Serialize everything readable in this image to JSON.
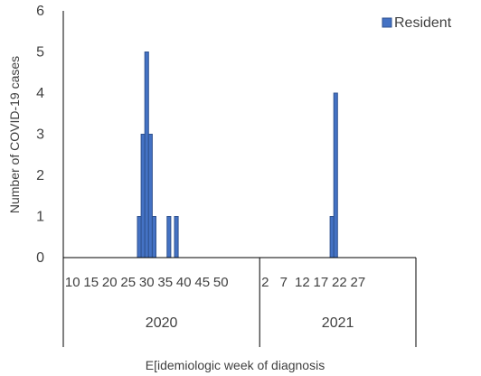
{
  "chart_data": {
    "type": "bar",
    "xlabel": "E[idemiologic week of diagnosis",
    "ylabel": "Number of COVID-19 cases",
    "ylim": [
      0,
      6
    ],
    "yticks": [
      0,
      1,
      2,
      3,
      4,
      5,
      6
    ],
    "legend": {
      "position": "top-right",
      "entries": [
        {
          "name": "Resident",
          "color": "#4472C4"
        }
      ]
    },
    "groups": [
      {
        "label": "2020",
        "week_start": 8,
        "week_end": 51,
        "tick_labels": [
          "10",
          "15",
          "20",
          "25",
          "30",
          "35",
          "40",
          "45",
          "50"
        ],
        "tick_weeks": [
          10,
          15,
          20,
          25,
          30,
          35,
          40,
          45,
          50
        ]
      },
      {
        "label": "2021",
        "week_start": 1,
        "week_end": 29,
        "tick_labels": [
          "2",
          "7",
          "12",
          "17",
          "22",
          "27"
        ],
        "tick_weeks": [
          2,
          7,
          12,
          17,
          22,
          27
        ]
      }
    ],
    "series": [
      {
        "name": "Resident",
        "color": "#4472C4",
        "points": [
          {
            "year": "2020",
            "week": 28,
            "value": 1
          },
          {
            "year": "2020",
            "week": 29,
            "value": 3
          },
          {
            "year": "2020",
            "week": 30,
            "value": 5
          },
          {
            "year": "2020",
            "week": 31,
            "value": 3
          },
          {
            "year": "2020",
            "week": 32,
            "value": 1
          },
          {
            "year": "2020",
            "week": 36,
            "value": 1
          },
          {
            "year": "2020",
            "week": 38,
            "value": 1
          },
          {
            "year": "2021",
            "week": 20,
            "value": 1
          },
          {
            "year": "2021",
            "week": 21,
            "value": 4
          }
        ]
      }
    ]
  }
}
